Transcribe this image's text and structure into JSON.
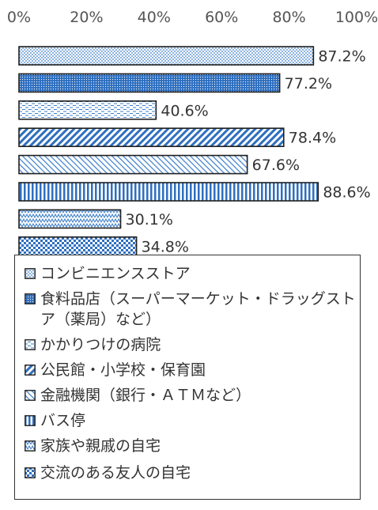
{
  "chart_data": {
    "type": "bar",
    "orientation": "horizontal",
    "xlim": [
      0,
      100
    ],
    "x_ticks": [
      "0%",
      "20%",
      "40%",
      "60%",
      "80%",
      "100%"
    ],
    "series": [
      {
        "name": "コンビニエンスストア",
        "value": 87.2,
        "label": "87.2%",
        "pattern": "dots-fine",
        "color": "#3a7dc9"
      },
      {
        "name": "食料品店（スーパーマーケット・ドラッグストア（薬局）など）",
        "value": 77.2,
        "label": "77.2%",
        "pattern": "dots-dense",
        "color": "#2f6fc0"
      },
      {
        "name": "かかりつけの病院",
        "value": 40.6,
        "label": "40.6%",
        "pattern": "dashes",
        "color": "#3a7dc9"
      },
      {
        "name": "公民館・小学校・保育園",
        "value": 78.4,
        "label": "78.4%",
        "pattern": "diagonal",
        "color": "#2f6fc0"
      },
      {
        "name": "金融機関（銀行・ＡＴＭなど）",
        "value": 67.6,
        "label": "67.6%",
        "pattern": "light-diagonal",
        "color": "#3a7dc9"
      },
      {
        "name": "バス停",
        "value": 88.6,
        "label": "88.6%",
        "pattern": "vertical",
        "color": "#2f6fc0"
      },
      {
        "name": "家族や親戚の自宅",
        "value": 30.1,
        "label": "30.1%",
        "pattern": "zigzag",
        "color": "#3a7dc9"
      },
      {
        "name": "交流のある友人の自宅",
        "value": 34.8,
        "label": "34.8%",
        "pattern": "checker",
        "color": "#2f6fc0"
      }
    ],
    "grid": false,
    "legend_position": "bottom"
  }
}
